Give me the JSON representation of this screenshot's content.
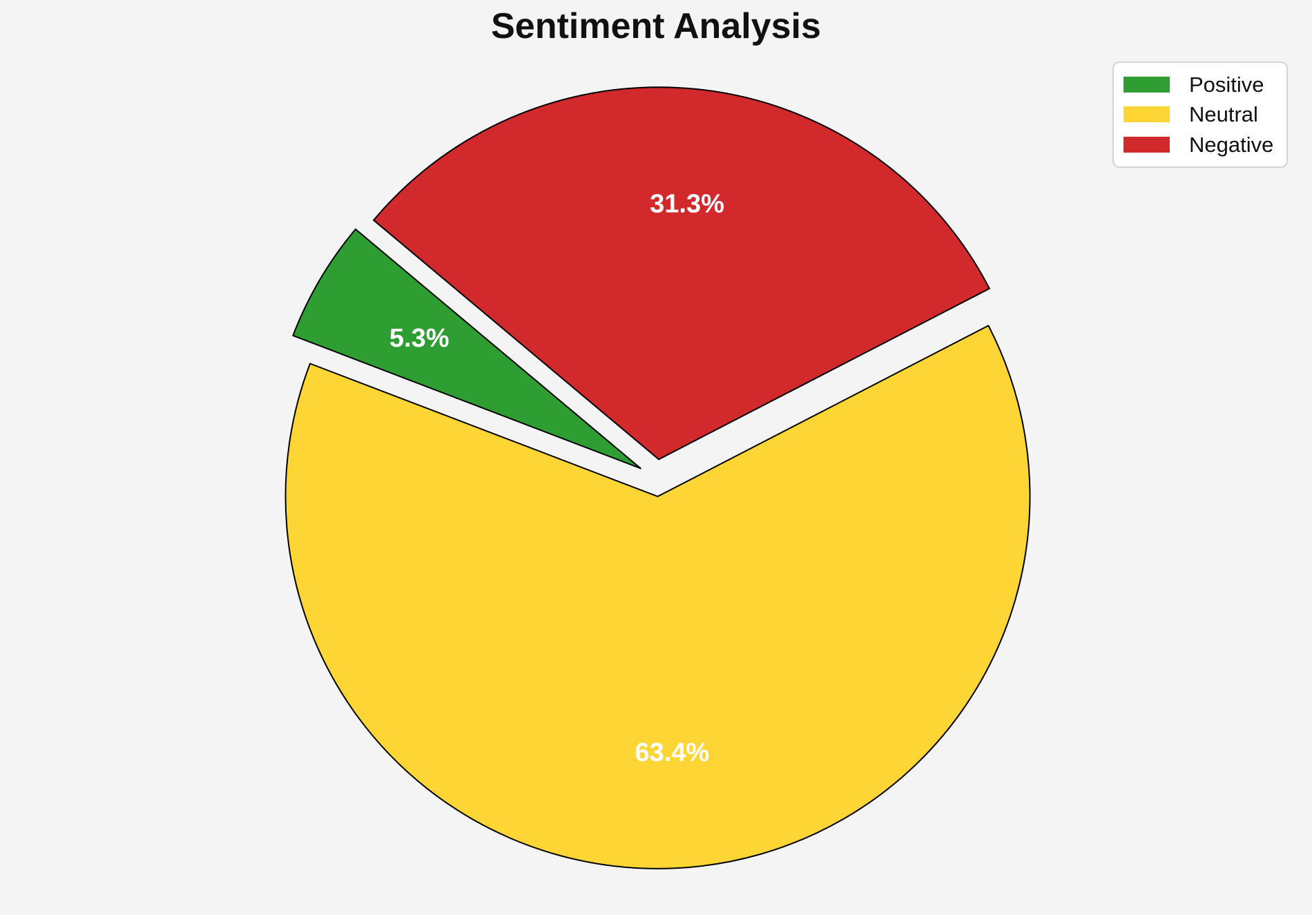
{
  "chart_data": {
    "type": "pie",
    "title": "Sentiment Analysis",
    "slices": [
      {
        "label": "Positive",
        "value": 5.3,
        "pct_label": "5.3%",
        "color": "#2e9e33"
      },
      {
        "label": "Neutral",
        "value": 63.4,
        "pct_label": "63.4%",
        "color": "#fdd535"
      },
      {
        "label": "Negative",
        "value": 31.3,
        "pct_label": "31.3%",
        "color": "#d2292d"
      }
    ],
    "start_angle": 140,
    "counterclock": true,
    "explode": 0.05,
    "pct_distance": 0.69,
    "edge_color": "#000000",
    "pct_label_color": "#ffffff",
    "background_color": "#f4f4f5",
    "legend": {
      "position": "upper right",
      "items": [
        "Positive",
        "Neutral",
        "Negative"
      ]
    }
  }
}
